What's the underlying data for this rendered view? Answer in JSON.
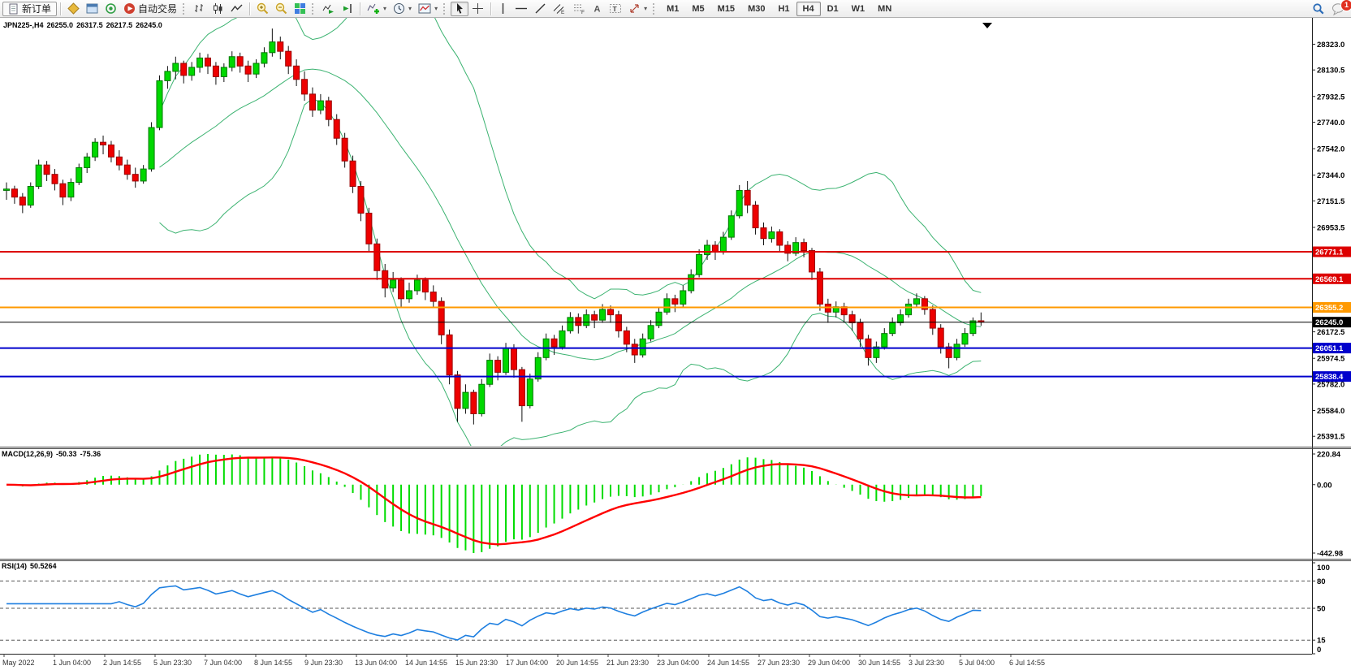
{
  "toolbar": {
    "new_order_label": "新订单",
    "autotrading_label": "自动交易",
    "timeframes": [
      "M1",
      "M5",
      "M15",
      "M30",
      "H1",
      "H4",
      "D1",
      "W1",
      "MN"
    ],
    "active_timeframe": "H4",
    "notification_count": "1",
    "icon_buttons": [
      "new-order",
      "symbols",
      "data-window",
      "signals",
      "autotrading",
      "bar-chart",
      "candlestick-chart",
      "line-chart",
      "zoom-in",
      "zoom-out",
      "tile-windows",
      "auto-scroll",
      "chart-shift",
      "indicators",
      "periods",
      "templates",
      "cursor",
      "crosshair",
      "vertical-line",
      "horizontal-line",
      "trendline",
      "equidistant-channel",
      "fibonacci",
      "text",
      "text-label",
      "arrows",
      "search",
      "notifications"
    ]
  },
  "chart_data": {
    "type": "candlestick",
    "title": {
      "symbol": "JPN225-,H4",
      "open": "26255.0",
      "high": "26317.5",
      "low": "26217.5",
      "close": "26245.0"
    },
    "price_axis": {
      "min": 25320,
      "max": 28520,
      "tick_labels": [
        "28323.0",
        "28130.5",
        "27932.5",
        "27740.0",
        "27542.0",
        "27344.0",
        "27151.5",
        "26953.5",
        "26172.5",
        "25974.5",
        "25782.0",
        "25584.0",
        "25391.5"
      ],
      "tick_values": [
        28323.0,
        28130.5,
        27932.5,
        27740.0,
        27542.0,
        27344.0,
        27151.5,
        26953.5,
        26172.5,
        25974.5,
        25782.0,
        25584.0,
        25391.5
      ]
    },
    "hlines": [
      {
        "value": 26771.1,
        "label": "26771.1",
        "color": "#dd0000",
        "width": 2
      },
      {
        "value": 26569.1,
        "label": "26569.1",
        "color": "#dd0000",
        "width": 2
      },
      {
        "value": 26355.2,
        "label": "26355.2",
        "color": "#ff9900",
        "width": 2
      },
      {
        "value": 26245.0,
        "label": "26245.0",
        "color": "#000000",
        "width": 1
      },
      {
        "value": 26051.1,
        "label": "26051.1",
        "color": "#0000cc",
        "width": 2
      },
      {
        "value": 25838.4,
        "label": "25838.4",
        "color": "#0000cc",
        "width": 2
      }
    ],
    "x_labels": [
      "May 2022",
      "1 Jun 04:00",
      "2 Jun 14:55",
      "5 Jun 23:30",
      "7 Jun 04:00",
      "8 Jun 14:55",
      "9 Jun 23:30",
      "13 Jun 04:00",
      "14 Jun 14:55",
      "15 Jun 23:30",
      "17 Jun 04:00",
      "20 Jun 14:55",
      "21 Jun 23:30",
      "23 Jun 04:00",
      "24 Jun 14:55",
      "27 Jun 23:30",
      "29 Jun 04:00",
      "30 Jun 14:55",
      "3 Jul 23:30",
      "5 Jul 04:00",
      "6 Jul 14:55"
    ],
    "colors": {
      "up": "#00d800",
      "up_border": "#007700",
      "down": "#ee0000",
      "down_border": "#990000",
      "wick": "#111111",
      "bollinger": "#3cb371",
      "macd_hist": "#00dc00",
      "macd_signal": "#ff0000",
      "rsi": "#1e7fe0"
    },
    "indicators": {
      "bollinger": {
        "period": 20,
        "deviation": 2
      },
      "macd": {
        "label": "MACD(12,26,9)",
        "fast": 12,
        "slow": 26,
        "signal": 9,
        "values": [
          "-50.33",
          "-75.36"
        ],
        "axis_labels": [
          "220.84",
          "0.00",
          "-442.98"
        ]
      },
      "rsi": {
        "label": "RSI(14)",
        "period": 14,
        "value": "50.5264",
        "levels": [
          80,
          50,
          15
        ],
        "axis_labels": [
          "100",
          "80",
          "50",
          "15",
          "0"
        ]
      }
    },
    "candles": [
      [
        27230,
        27290,
        27160,
        27240
      ],
      [
        27240,
        27265,
        27130,
        27180
      ],
      [
        27180,
        27210,
        27060,
        27120
      ],
      [
        27120,
        27290,
        27100,
        27260
      ],
      [
        27260,
        27460,
        27240,
        27420
      ],
      [
        27420,
        27450,
        27300,
        27350
      ],
      [
        27350,
        27390,
        27230,
        27280
      ],
      [
        27280,
        27310,
        27120,
        27180
      ],
      [
        27180,
        27320,
        27150,
        27290
      ],
      [
        27290,
        27430,
        27270,
        27400
      ],
      [
        27400,
        27510,
        27360,
        27480
      ],
      [
        27480,
        27620,
        27450,
        27590
      ],
      [
        27590,
        27640,
        27500,
        27570
      ],
      [
        27570,
        27600,
        27440,
        27480
      ],
      [
        27480,
        27530,
        27380,
        27420
      ],
      [
        27420,
        27460,
        27310,
        27350
      ],
      [
        27350,
        27400,
        27250,
        27300
      ],
      [
        27300,
        27420,
        27280,
        27390
      ],
      [
        27390,
        27740,
        27370,
        27700
      ],
      [
        27700,
        28090,
        27680,
        28050
      ],
      [
        28050,
        28160,
        27990,
        28120
      ],
      [
        28120,
        28230,
        28060,
        28180
      ],
      [
        28180,
        28200,
        28030,
        28090
      ],
      [
        28090,
        28190,
        28050,
        28150
      ],
      [
        28150,
        28260,
        28110,
        28220
      ],
      [
        28220,
        28250,
        28100,
        28160
      ],
      [
        28160,
        28190,
        28020,
        28080
      ],
      [
        28080,
        28180,
        28040,
        28150
      ],
      [
        28150,
        28270,
        28120,
        28230
      ],
      [
        28230,
        28260,
        28110,
        28160
      ],
      [
        28160,
        28200,
        28040,
        28100
      ],
      [
        28100,
        28210,
        28070,
        28180
      ],
      [
        28180,
        28300,
        28150,
        28260
      ],
      [
        28260,
        28440,
        28230,
        28340
      ],
      [
        28340,
        28380,
        28210,
        28270
      ],
      [
        28270,
        28310,
        28100,
        28160
      ],
      [
        28160,
        28210,
        28010,
        28060
      ],
      [
        28060,
        28120,
        27900,
        27950
      ],
      [
        27950,
        28000,
        27780,
        27830
      ],
      [
        27830,
        27950,
        27800,
        27900
      ],
      [
        27900,
        27930,
        27710,
        27760
      ],
      [
        27760,
        27800,
        27570,
        27620
      ],
      [
        27620,
        27660,
        27400,
        27450
      ],
      [
        27450,
        27490,
        27210,
        27260
      ],
      [
        27260,
        27300,
        27000,
        27060
      ],
      [
        27060,
        27100,
        26770,
        26830
      ],
      [
        26830,
        26870,
        26560,
        26630
      ],
      [
        26630,
        26680,
        26430,
        26500
      ],
      [
        26500,
        26620,
        26470,
        26560
      ],
      [
        26560,
        26580,
        26360,
        26420
      ],
      [
        26420,
        26540,
        26390,
        26480
      ],
      [
        26480,
        26600,
        26450,
        26560
      ],
      [
        26560,
        26580,
        26410,
        26470
      ],
      [
        26470,
        26520,
        26350,
        26400
      ],
      [
        26400,
        26430,
        26080,
        26150
      ],
      [
        26150,
        26190,
        25780,
        25850
      ],
      [
        25850,
        25880,
        25500,
        25600
      ],
      [
        25600,
        25780,
        25560,
        25720
      ],
      [
        25720,
        25740,
        25480,
        25560
      ],
      [
        25560,
        25820,
        25540,
        25780
      ],
      [
        25780,
        26010,
        25760,
        25960
      ],
      [
        25960,
        25990,
        25810,
        25870
      ],
      [
        25870,
        26090,
        25850,
        26050
      ],
      [
        26050,
        26080,
        25830,
        25890
      ],
      [
        25890,
        25910,
        25500,
        25620
      ],
      [
        25620,
        25860,
        25600,
        25820
      ],
      [
        25820,
        26020,
        25800,
        25980
      ],
      [
        25980,
        26160,
        25960,
        26120
      ],
      [
        26120,
        26150,
        26000,
        26060
      ],
      [
        26060,
        26220,
        26040,
        26180
      ],
      [
        26180,
        26320,
        26160,
        26280
      ],
      [
        26280,
        26310,
        26160,
        26220
      ],
      [
        26220,
        26340,
        26200,
        26300
      ],
      [
        26300,
        26330,
        26200,
        26260
      ],
      [
        26260,
        26380,
        26240,
        26340
      ],
      [
        26340,
        26370,
        26240,
        26300
      ],
      [
        26300,
        26330,
        26130,
        26180
      ],
      [
        26180,
        26210,
        26020,
        26080
      ],
      [
        26080,
        26120,
        25940,
        26000
      ],
      [
        26000,
        26160,
        25980,
        26120
      ],
      [
        26120,
        26260,
        26100,
        26220
      ],
      [
        26220,
        26360,
        26200,
        26320
      ],
      [
        26320,
        26460,
        26300,
        26420
      ],
      [
        26420,
        26450,
        26320,
        26380
      ],
      [
        26380,
        26520,
        26360,
        26480
      ],
      [
        26480,
        26640,
        26460,
        26600
      ],
      [
        26600,
        26790,
        26580,
        26750
      ],
      [
        26750,
        26860,
        26710,
        26820
      ],
      [
        26820,
        26850,
        26710,
        26770
      ],
      [
        26770,
        26920,
        26750,
        26880
      ],
      [
        26880,
        27080,
        26860,
        27040
      ],
      [
        27040,
        27270,
        27020,
        27230
      ],
      [
        27230,
        27300,
        27060,
        27120
      ],
      [
        27120,
        27150,
        26900,
        26950
      ],
      [
        26950,
        26990,
        26820,
        26870
      ],
      [
        26870,
        26960,
        26840,
        26920
      ],
      [
        26920,
        26940,
        26770,
        26820
      ],
      [
        26820,
        26850,
        26700,
        26760
      ],
      [
        26760,
        26880,
        26740,
        26840
      ],
      [
        26840,
        26870,
        26730,
        26780
      ],
      [
        26780,
        26800,
        26560,
        26620
      ],
      [
        26620,
        26650,
        26330,
        26380
      ],
      [
        26380,
        26420,
        26240,
        26320
      ],
      [
        26320,
        26400,
        26280,
        26360
      ],
      [
        26360,
        26390,
        26240,
        26300
      ],
      [
        26300,
        26330,
        26180,
        26240
      ],
      [
        26240,
        26270,
        26060,
        26120
      ],
      [
        26120,
        26150,
        25920,
        25980
      ],
      [
        25980,
        26100,
        25940,
        26060
      ],
      [
        26060,
        26200,
        26040,
        26160
      ],
      [
        26160,
        26280,
        26140,
        26240
      ],
      [
        26240,
        26340,
        26220,
        26300
      ],
      [
        26300,
        26420,
        26280,
        26380
      ],
      [
        26380,
        26460,
        26360,
        26420
      ],
      [
        26420,
        26440,
        26300,
        26340
      ],
      [
        26340,
        26370,
        26150,
        26200
      ],
      [
        26200,
        26230,
        26010,
        26060
      ],
      [
        26060,
        26090,
        25900,
        25980
      ],
      [
        25980,
        26120,
        25960,
        26080
      ],
      [
        26080,
        26200,
        26060,
        26160
      ],
      [
        26160,
        26280,
        26140,
        26255
      ],
      [
        26255,
        26317.5,
        26217.5,
        26245
      ]
    ]
  }
}
